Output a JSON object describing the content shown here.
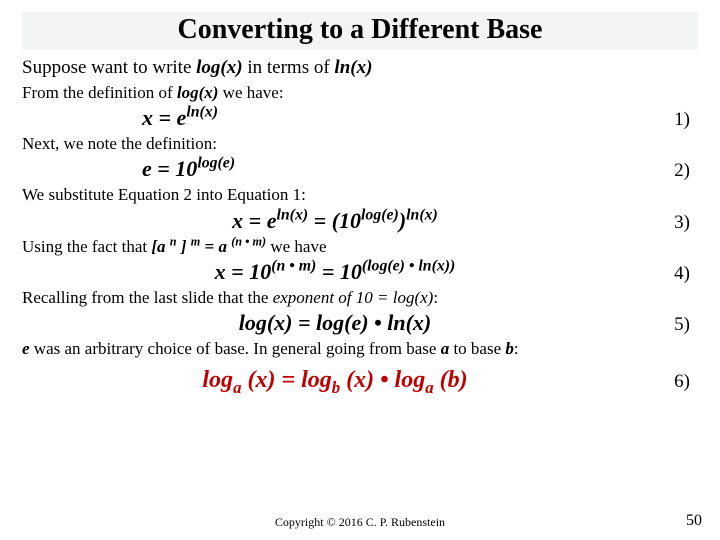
{
  "title": "Converting to a Different Base",
  "intro": {
    "pre": "Suppose want to write ",
    "log": "log(x)",
    "mid": " in terms of ",
    "ln": "ln(x)"
  },
  "def1": {
    "pre": "From the definition of ",
    "log": "log(x)",
    "post": " we have:"
  },
  "eq1": {
    "html": "x = e<sup>ln(x)</sup>",
    "num": "1)"
  },
  "next": "Next, we note the definition:",
  "eq2": {
    "html": "e = 10<sup>log(e)</sup>",
    "num": "2)"
  },
  "sub": "We substitute Equation 2 into Equation 1:",
  "eq3": {
    "html": "x = e<sup>ln(x)</sup> = (10<sup>log(e)</sup>)<sup>ln(x)</sup>",
    "num": "3)"
  },
  "using": {
    "pre": "Using the fact that ",
    "rule": "[a <sup>n</sup> ] <sup>m</sup> = a <sup>(n • m)</sup>",
    "post": " we have"
  },
  "eq4": {
    "html": "x = 10<sup>(n • m)</sup> =  10<sup>(log(e) • ln(x))</sup>",
    "num": "4)"
  },
  "recall": {
    "pre": "Recalling from the last slide that the ",
    "it": "exponent of 10 = log(x)",
    "post": ":"
  },
  "eq5": {
    "html": "log(x)  = log(e) • ln(x)",
    "num": "5)"
  },
  "arb": {
    "pre1": "e",
    "mid1": " was an arbitrary choice of base. In general going from base ",
    "a": "a",
    "mid2": " to base ",
    "b": "b",
    "post": ":"
  },
  "eq6": {
    "html": "log<sub>a</sub> (x) = log<sub>b</sub> (x) • log<sub>a</sub> (b)",
    "num": "6)"
  },
  "copyright": "Copyright © 2016 C. P. Rubenstein",
  "page": "50",
  "colors": {
    "accent": "#c00000",
    "title_bg": "#f2f5f3",
    "text": "#000000"
  }
}
